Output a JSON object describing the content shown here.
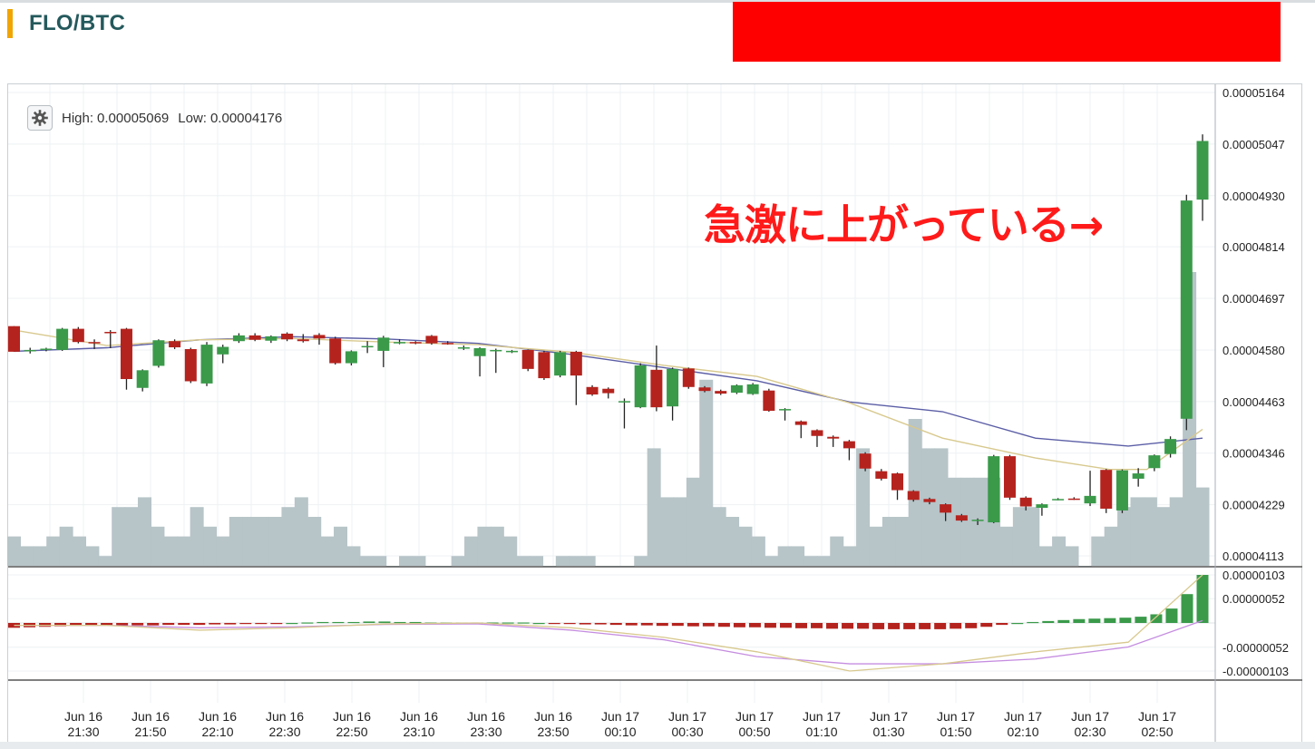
{
  "header": {
    "pair": "FLO/BTC"
  },
  "legend": {
    "high_label": "High:",
    "high_value": "0.00005069",
    "low_label": "Low:",
    "low_value": "0.00004176"
  },
  "annotation": {
    "text": "急激に上がっている→"
  },
  "colors": {
    "up": "#3a9a4a",
    "down": "#b5231e",
    "volume": "#b7c4c8",
    "ma_slow": "#5b5ea6",
    "ma_fast": "#d8c98e",
    "macd_signal": "#c58de0",
    "macd_line": "#d8c98e",
    "accent": "#f0a500"
  },
  "chart_data": {
    "type": "candlestick",
    "title": "FLO/BTC",
    "x_tick_labels": [
      [
        "Jun 16",
        "21:30"
      ],
      [
        "Jun 16",
        "21:50"
      ],
      [
        "Jun 16",
        "22:10"
      ],
      [
        "Jun 16",
        "22:30"
      ],
      [
        "Jun 16",
        "22:50"
      ],
      [
        "Jun 16",
        "23:10"
      ],
      [
        "Jun 16",
        "23:30"
      ],
      [
        "Jun 16",
        "23:50"
      ],
      [
        "Jun 17",
        "00:10"
      ],
      [
        "Jun 17",
        "00:30"
      ],
      [
        "Jun 17",
        "00:50"
      ],
      [
        "Jun 17",
        "01:10"
      ],
      [
        "Jun 17",
        "01:30"
      ],
      [
        "Jun 17",
        "01:50"
      ],
      [
        "Jun 17",
        "02:10"
      ],
      [
        "Jun 17",
        "02:30"
      ],
      [
        "Jun 17",
        "02:50"
      ]
    ],
    "price_axis_labels": [
      "0.00005164",
      "0.00005047",
      "0.00004930",
      "0.00004814",
      "0.00004697",
      "0.00004580",
      "0.00004463",
      "0.00004346",
      "0.00004229",
      "0.00004113"
    ],
    "price_range": [
      4.113e-05,
      5.164e-05
    ],
    "macd_axis_labels": [
      "0.00000103",
      "0.00000052",
      "-0.00000052",
      "-0.00000103"
    ],
    "macd_range": [
      -1.03e-06,
      1.03e-06
    ],
    "candles": [
      [
        4.634,
        4.576,
        4.634,
        4.576
      ],
      [
        4.577,
        4.58,
        4.585,
        4.572
      ],
      [
        4.58,
        4.583,
        4.585,
        4.577
      ],
      [
        4.58,
        4.628,
        4.63,
        4.578
      ],
      [
        4.628,
        4.598,
        4.632,
        4.595
      ],
      [
        4.598,
        4.596,
        4.604,
        4.582
      ],
      [
        4.621,
        4.618,
        4.625,
        4.584
      ],
      [
        4.628,
        4.514,
        4.63,
        4.49
      ],
      [
        4.494,
        4.534,
        4.536,
        4.486
      ],
      [
        4.544,
        4.602,
        4.604,
        4.54
      ],
      [
        4.6,
        4.586,
        4.604,
        4.582
      ],
      [
        4.582,
        4.509,
        4.585,
        4.505
      ],
      [
        4.504,
        4.592,
        4.598,
        4.498
      ],
      [
        4.57,
        4.587,
        4.592,
        4.55
      ],
      [
        4.6,
        4.613,
        4.618,
        4.596
      ],
      [
        4.613,
        4.603,
        4.618,
        4.6
      ],
      [
        4.601,
        4.611,
        4.613,
        4.596
      ],
      [
        4.617,
        4.604,
        4.62,
        4.6
      ],
      [
        4.604,
        4.6,
        4.616,
        4.597
      ],
      [
        4.614,
        4.606,
        4.618,
        4.592
      ],
      [
        4.606,
        4.55,
        4.61,
        4.547
      ],
      [
        4.55,
        4.577,
        4.579,
        4.545
      ],
      [
        4.586,
        4.589,
        4.6,
        4.573
      ],
      [
        4.578,
        4.608,
        4.612,
        4.541
      ],
      [
        4.596,
        4.598,
        4.604,
        4.593
      ],
      [
        4.598,
        4.595,
        4.6,
        4.593
      ],
      [
        4.612,
        4.595,
        4.614,
        4.592
      ],
      [
        4.596,
        4.595,
        4.6,
        4.592
      ],
      [
        4.583,
        4.586,
        4.59,
        4.58
      ],
      [
        4.566,
        4.584,
        4.586,
        4.52
      ],
      [
        4.58,
        4.58,
        4.583,
        4.528
      ],
      [
        4.575,
        4.578,
        4.58,
        4.573
      ],
      [
        4.58,
        4.537,
        4.581,
        4.532
      ],
      [
        4.575,
        4.516,
        4.578,
        4.512
      ],
      [
        4.522,
        4.575,
        4.578,
        4.518
      ],
      [
        4.576,
        4.522,
        4.578,
        4.455
      ],
      [
        4.496,
        4.479,
        4.5,
        4.476
      ],
      [
        4.492,
        4.482,
        4.495,
        4.47
      ],
      [
        4.462,
        4.464,
        4.47,
        4.402
      ],
      [
        4.45,
        4.545,
        4.55,
        4.448
      ],
      [
        4.535,
        4.45,
        4.59,
        4.441
      ],
      [
        4.452,
        4.537,
        4.54,
        4.42
      ],
      [
        4.538,
        4.496,
        4.54,
        4.492
      ],
      [
        4.495,
        4.487,
        4.498,
        4.484
      ],
      [
        4.487,
        4.481,
        4.49,
        4.478
      ],
      [
        4.483,
        4.5,
        4.502,
        4.48
      ],
      [
        4.48,
        4.502,
        4.505,
        4.478
      ],
      [
        4.488,
        4.442,
        4.492,
        4.44
      ],
      [
        4.445,
        4.446,
        4.448,
        4.42
      ],
      [
        4.418,
        4.41,
        4.42,
        4.38
      ],
      [
        4.398,
        4.385,
        4.4,
        4.36
      ],
      [
        4.383,
        4.379,
        4.386,
        4.36
      ],
      [
        4.373,
        4.357,
        4.376,
        4.33
      ],
      [
        4.345,
        4.311,
        4.348,
        4.305
      ],
      [
        4.305,
        4.288,
        4.31,
        4.284
      ],
      [
        4.3,
        4.262,
        4.302,
        4.24
      ],
      [
        4.26,
        4.24,
        4.262,
        4.236
      ],
      [
        4.242,
        4.235,
        4.245,
        4.23
      ],
      [
        4.23,
        4.211,
        4.232,
        4.192
      ],
      [
        4.205,
        4.193,
        4.208,
        4.19
      ],
      [
        4.194,
        4.195,
        4.198,
        4.183
      ],
      [
        4.189,
        4.339,
        4.342,
        4.187
      ],
      [
        4.339,
        4.245,
        4.342,
        4.24
      ],
      [
        4.245,
        4.225,
        4.248,
        4.216
      ],
      [
        4.222,
        4.23,
        4.232,
        4.204
      ],
      [
        4.241,
        4.242,
        4.244,
        4.239
      ],
      [
        4.243,
        4.242,
        4.246,
        4.24
      ],
      [
        4.232,
        4.249,
        4.306,
        4.226
      ],
      [
        4.308,
        4.22,
        4.31,
        4.21
      ],
      [
        4.216,
        4.307,
        4.309,
        4.21
      ],
      [
        4.288,
        4.3,
        4.312,
        4.27
      ],
      [
        4.312,
        4.341,
        4.343,
        4.305
      ],
      [
        4.344,
        4.378,
        4.384,
        4.336
      ],
      [
        4.424,
        4.919,
        4.932,
        4.398
      ],
      [
        4.921,
        5.054,
        5.069,
        4.873
      ]
    ],
    "candle_scale": 1e-05,
    "volume": [
      3,
      2,
      2,
      3,
      4,
      3,
      2,
      1,
      6,
      6,
      7,
      4,
      3,
      3,
      6,
      4,
      3,
      5,
      5,
      5,
      5,
      6,
      7,
      5,
      3,
      4,
      2,
      1,
      1,
      0,
      1,
      1,
      0,
      0,
      1,
      3,
      4,
      4,
      3,
      1,
      1,
      0,
      1,
      1,
      1,
      0,
      0,
      0,
      1,
      12,
      7,
      7,
      9,
      19,
      6,
      5,
      4,
      3,
      1,
      2,
      2,
      1,
      1,
      3,
      2,
      12,
      4,
      5,
      5,
      15,
      12,
      12,
      9,
      9,
      9,
      9,
      4,
      6,
      6,
      2,
      3,
      2,
      0,
      3,
      4,
      6,
      7,
      7,
      6,
      7,
      30,
      8
    ],
    "macd_hist": [
      -0.1,
      -0.09,
      -0.08,
      -0.07,
      -0.06,
      -0.06,
      -0.05,
      -0.05,
      -0.05,
      -0.05,
      -0.04,
      -0.04,
      -0.04,
      -0.03,
      -0.03,
      -0.02,
      -0.02,
      -0.01,
      0.0,
      0.01,
      0.02,
      0.02,
      0.02,
      0.03,
      0.03,
      0.02,
      0.02,
      0.01,
      0.01,
      0.01,
      0.01,
      0.01,
      0.01,
      0.01,
      0.0,
      -0.01,
      -0.02,
      -0.03,
      -0.03,
      -0.04,
      -0.05,
      -0.05,
      -0.06,
      -0.06,
      -0.07,
      -0.07,
      -0.08,
      -0.09,
      -0.09,
      -0.1,
      -0.1,
      -0.11,
      -0.11,
      -0.12,
      -0.12,
      -0.12,
      -0.13,
      -0.13,
      -0.13,
      -0.13,
      -0.13,
      -0.12,
      -0.11,
      -0.08,
      -0.04,
      0.0,
      0.02,
      0.04,
      0.06,
      0.08,
      0.09,
      0.1,
      0.11,
      0.13,
      0.18,
      0.3,
      0.6,
      1.0
    ],
    "ma_slow": [
      [
        0,
        4.577
      ],
      [
        10,
        4.585
      ],
      [
        20,
        4.603
      ],
      [
        30,
        4.61
      ],
      [
        40,
        4.605
      ],
      [
        50,
        4.595
      ],
      [
        60,
        4.57
      ],
      [
        70,
        4.54
      ],
      [
        80,
        4.51
      ],
      [
        90,
        4.462
      ],
      [
        100,
        4.44
      ],
      [
        110,
        4.38
      ],
      [
        120,
        4.362
      ],
      [
        128,
        4.38
      ]
    ],
    "ma_fast": [
      [
        0,
        4.625
      ],
      [
        10,
        4.59
      ],
      [
        20,
        4.603
      ],
      [
        30,
        4.606
      ],
      [
        40,
        4.598
      ],
      [
        50,
        4.592
      ],
      [
        60,
        4.575
      ],
      [
        70,
        4.545
      ],
      [
        80,
        4.52
      ],
      [
        90,
        4.46
      ],
      [
        100,
        4.38
      ],
      [
        110,
        4.335
      ],
      [
        118,
        4.309
      ],
      [
        122,
        4.309
      ],
      [
        128,
        4.4
      ]
    ],
    "macd_line": [
      [
        0,
        -0.05
      ],
      [
        10,
        -0.05
      ],
      [
        20,
        -0.15
      ],
      [
        30,
        -0.1
      ],
      [
        40,
        -0.02
      ],
      [
        50,
        0.0
      ],
      [
        60,
        -0.1
      ],
      [
        70,
        -0.3
      ],
      [
        80,
        -0.6
      ],
      [
        90,
        -1.0
      ],
      [
        100,
        -0.85
      ],
      [
        110,
        -0.6
      ],
      [
        120,
        -0.4
      ],
      [
        128,
        1.0
      ]
    ],
    "macd_signal": [
      [
        0,
        -0.05
      ],
      [
        10,
        -0.05
      ],
      [
        20,
        -0.1
      ],
      [
        30,
        -0.08
      ],
      [
        40,
        -0.03
      ],
      [
        50,
        -0.02
      ],
      [
        60,
        -0.15
      ],
      [
        70,
        -0.35
      ],
      [
        80,
        -0.7
      ],
      [
        90,
        -0.85
      ],
      [
        100,
        -0.85
      ],
      [
        110,
        -0.75
      ],
      [
        120,
        -0.5
      ],
      [
        128,
        0.05
      ]
    ],
    "grid": true,
    "legend": "top-left"
  }
}
